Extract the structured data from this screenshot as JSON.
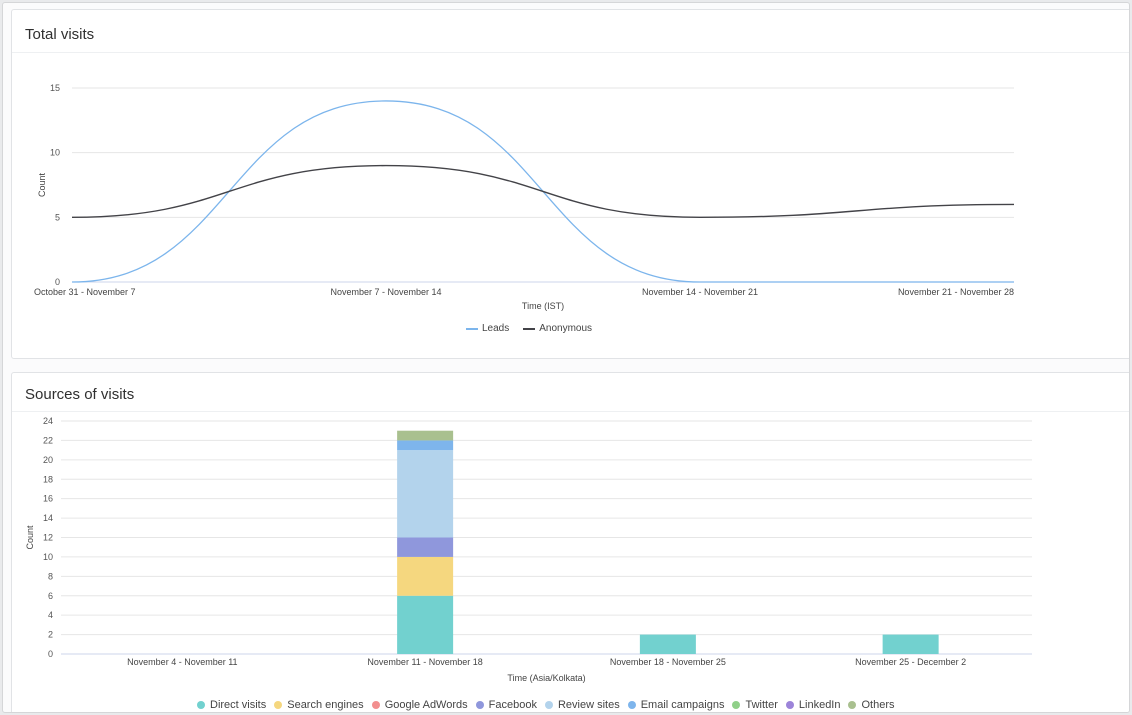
{
  "total_visits": {
    "title": "Total visits",
    "legend": [
      {
        "label": "Leads",
        "color": "#7cb5ec"
      },
      {
        "label": "Anonymous",
        "color": "#434348"
      }
    ]
  },
  "sources": {
    "title": "Sources of visits",
    "legend": [
      {
        "label": "Direct visits",
        "color": "#72d1cf"
      },
      {
        "label": "Search engines",
        "color": "#f5d77f"
      },
      {
        "label": "Google AdWords",
        "color": "#f28f8f"
      },
      {
        "label": "Facebook",
        "color": "#8f97dc"
      },
      {
        "label": "Review sites",
        "color": "#b3d3ec"
      },
      {
        "label": "Email campaigns",
        "color": "#7eb5ec"
      },
      {
        "label": "Twitter",
        "color": "#90d089"
      },
      {
        "label": "LinkedIn",
        "color": "#9c84d9"
      },
      {
        "label": "Others",
        "color": "#a9c08f"
      }
    ]
  },
  "chart_data": [
    {
      "type": "line",
      "title": "Total visits",
      "xlabel": "Time (IST)",
      "ylabel": "Count",
      "ylim": [
        0,
        15
      ],
      "yticks": [
        0,
        5,
        10,
        15
      ],
      "categories": [
        "October 31 - November 7",
        "November 7 - November 14",
        "November 14 - November 21",
        "November 21 - November 28"
      ],
      "series": [
        {
          "name": "Leads",
          "color": "#7cb5ec",
          "values": [
            0,
            14,
            0,
            0
          ]
        },
        {
          "name": "Anonymous",
          "color": "#434348",
          "values": [
            5,
            9,
            5,
            6
          ]
        }
      ],
      "grid": true,
      "legend_position": "bottom"
    },
    {
      "type": "bar",
      "stacked": true,
      "title": "Sources of visits",
      "xlabel": "Time (Asia/Kolkata)",
      "ylabel": "Count",
      "ylim": [
        0,
        24
      ],
      "yticks": [
        0,
        2,
        4,
        6,
        8,
        10,
        12,
        14,
        16,
        18,
        20,
        22,
        24
      ],
      "categories": [
        "November 4 - November 11",
        "November 11 - November 18",
        "November 18 - November 25",
        "November 25 - December 2"
      ],
      "series": [
        {
          "name": "Direct visits",
          "color": "#72d1cf",
          "values": [
            0,
            6,
            2,
            2
          ]
        },
        {
          "name": "Search engines",
          "color": "#f5d77f",
          "values": [
            0,
            4,
            0,
            0
          ]
        },
        {
          "name": "Google AdWords",
          "color": "#f28f8f",
          "values": [
            0,
            0,
            0,
            0
          ]
        },
        {
          "name": "Facebook",
          "color": "#8f97dc",
          "values": [
            0,
            2,
            0,
            0
          ]
        },
        {
          "name": "Review sites",
          "color": "#b3d3ec",
          "values": [
            0,
            9,
            0,
            0
          ]
        },
        {
          "name": "Email campaigns",
          "color": "#7eb5ec",
          "values": [
            0,
            1,
            0,
            0
          ]
        },
        {
          "name": "Twitter",
          "color": "#90d089",
          "values": [
            0,
            0,
            0,
            0
          ]
        },
        {
          "name": "LinkedIn",
          "color": "#9c84d9",
          "values": [
            0,
            0,
            0,
            0
          ]
        },
        {
          "name": "Others",
          "color": "#a9c08f",
          "values": [
            0,
            1,
            0,
            0
          ]
        }
      ],
      "grid": true,
      "legend_position": "bottom"
    }
  ]
}
